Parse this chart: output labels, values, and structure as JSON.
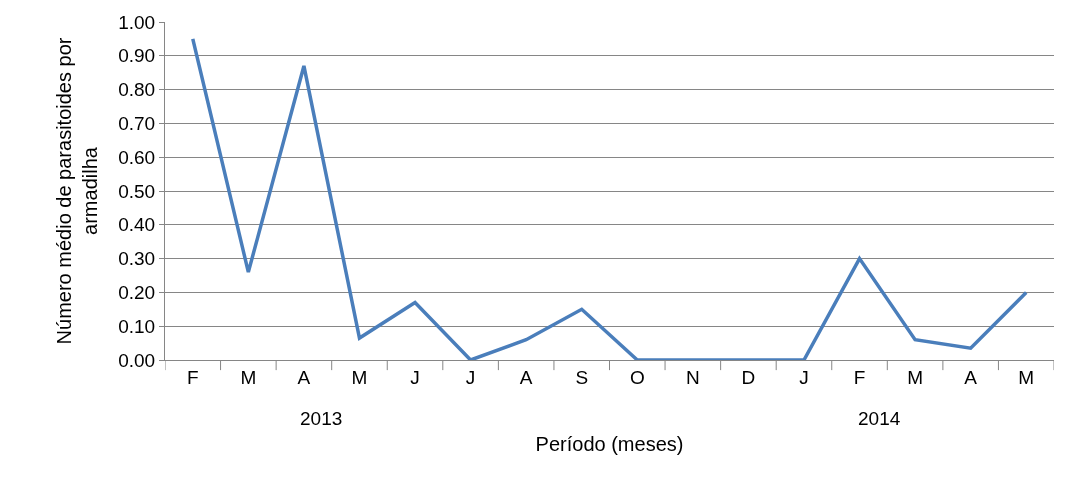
{
  "chart_data": {
    "type": "line",
    "xlabel": "Período (meses)",
    "ylabel": "Número médio de parasitoides por armadilha",
    "categories": [
      "F",
      "M",
      "A",
      "M",
      "J",
      "J",
      "A",
      "S",
      "O",
      "N",
      "D",
      "J",
      "F",
      "M",
      "A",
      "M"
    ],
    "series": [
      {
        "color": "#4a7ebb",
        "values": [
          0.95,
          0.26,
          0.87,
          0.065,
          0.17,
          0.0,
          0.06,
          0.15,
          0.0,
          0.0,
          0.0,
          0.0,
          0.3,
          0.06,
          0.035,
          0.2
        ]
      }
    ],
    "ylim": [
      0,
      1
    ],
    "yticks": [
      {
        "value": 0,
        "label": "0.00"
      },
      {
        "value": 0.1,
        "label": "0.10"
      },
      {
        "value": 0.2,
        "label": "0.20"
      },
      {
        "value": 0.3,
        "label": "0.30"
      },
      {
        "value": 0.4,
        "label": "0.40"
      },
      {
        "value": 0.5,
        "label": "0.50"
      },
      {
        "value": 0.6,
        "label": "0.60"
      },
      {
        "value": 0.7,
        "label": "0.70"
      },
      {
        "value": 0.8,
        "label": "0.80"
      },
      {
        "value": 0.9,
        "label": "0.90"
      },
      {
        "value": 1,
        "label": "1.00"
      }
    ],
    "grid": "y",
    "marker": "none",
    "line_style": "solid",
    "annotations": [
      "2013",
      "2014"
    ]
  }
}
